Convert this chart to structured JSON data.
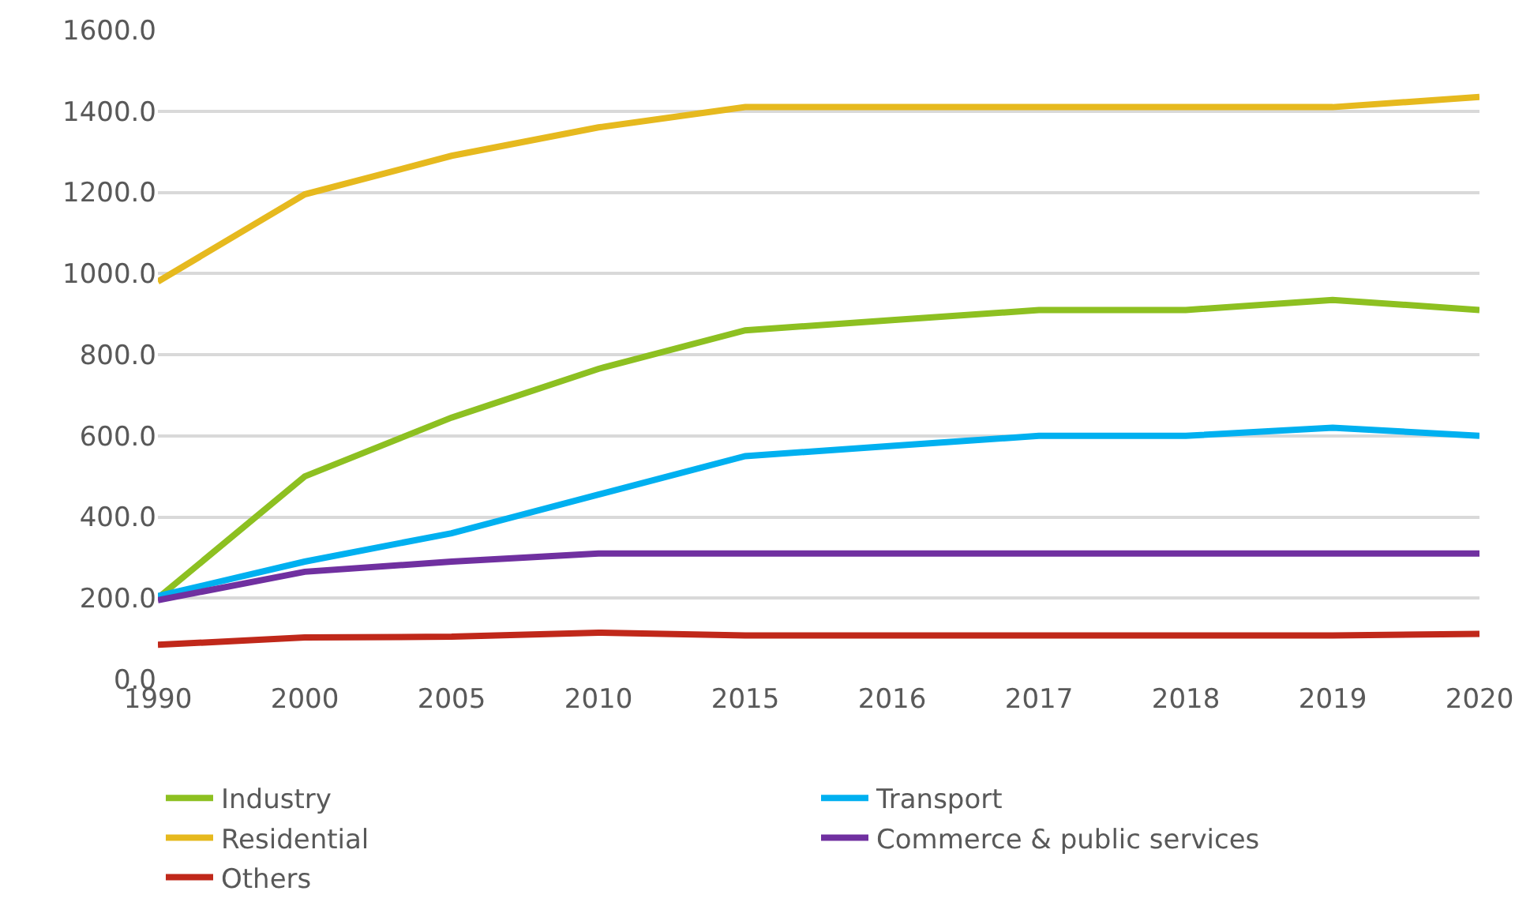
{
  "chart_data": {
    "type": "line",
    "categories": [
      "1990",
      "2000",
      "2005",
      "2010",
      "2015",
      "2016",
      "2017",
      "2018",
      "2019",
      "2020"
    ],
    "series": [
      {
        "name": "Industry",
        "color": "#8dc021",
        "values": [
          200,
          500,
          645,
          765,
          860,
          885,
          910,
          910,
          935,
          910
        ]
      },
      {
        "name": "Transport",
        "color": "#00b0f0",
        "values": [
          205,
          290,
          360,
          455,
          550,
          575,
          600,
          600,
          620,
          600
        ]
      },
      {
        "name": "Residential",
        "color": "#e6b91e",
        "values": [
          980,
          1195,
          1290,
          1360,
          1410,
          1410,
          1410,
          1410,
          1410,
          1435
        ]
      },
      {
        "name": "Commerce & public services",
        "color": "#7030a0",
        "values": [
          195,
          265,
          290,
          310,
          310,
          310,
          310,
          310,
          310,
          310
        ]
      },
      {
        "name": "Others",
        "color": "#c0281a",
        "values": [
          85,
          103,
          105,
          115,
          108,
          108,
          108,
          108,
          108,
          112
        ]
      }
    ],
    "ylim": [
      0,
      1600
    ],
    "yticks": [
      {
        "value": 0,
        "label": "0.0"
      },
      {
        "value": 200,
        "label": "200.0"
      },
      {
        "value": 400,
        "label": "400.0"
      },
      {
        "value": 600,
        "label": "600.0"
      },
      {
        "value": 800,
        "label": "800.0"
      },
      {
        "value": 1000,
        "label": "1000.0"
      },
      {
        "value": 1200,
        "label": "1200.0"
      },
      {
        "value": 1400,
        "label": "1400.0"
      },
      {
        "value": 1600,
        "label": "1600.0"
      }
    ],
    "grid": "y",
    "legend": "bottom",
    "marker": "none",
    "line_style": "solid"
  }
}
